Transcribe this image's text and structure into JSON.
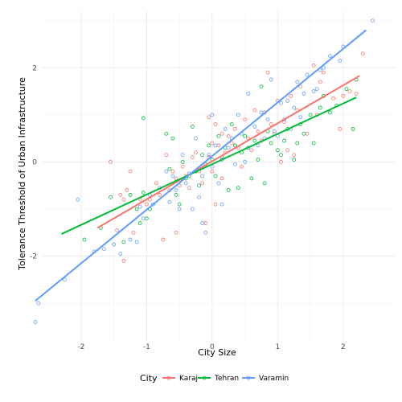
{
  "chart_data": {
    "type": "scatter",
    "title": "",
    "xlabel": "City Size",
    "ylabel": "Tolerance Threshold of Urban Infrastructure",
    "xlim": [
      -2.6,
      2.8
    ],
    "ylim": [
      -3.8,
      3.2
    ],
    "x_ticks": [
      -2,
      -1,
      0,
      1,
      2
    ],
    "x_tick_labels": [
      "-2",
      "-1",
      "0",
      "1",
      "2"
    ],
    "y_ticks": [
      -2,
      0,
      2
    ],
    "y_tick_labels": [
      "-2",
      "0",
      "2"
    ],
    "grid": true,
    "legend": {
      "title": "City",
      "position": "bottom"
    },
    "series": [
      {
        "name": "Karaj",
        "color": "#F8766D",
        "trend": [
          [
            -1.75,
            -1.4
          ],
          [
            2.25,
            1.83
          ]
        ],
        "points": [
          [
            -1.55,
            0.0
          ],
          [
            -1.45,
            -1.45
          ],
          [
            -1.3,
            -0.6
          ],
          [
            -1.25,
            -0.2
          ],
          [
            -1.35,
            -0.8
          ],
          [
            -1.4,
            -0.7
          ],
          [
            -1.35,
            -2.1
          ],
          [
            -1.2,
            -1.5
          ],
          [
            -1.1,
            -0.8
          ],
          [
            -1.0,
            -0.9
          ],
          [
            -0.95,
            -0.8
          ],
          [
            -0.85,
            -0.45
          ],
          [
            -0.8,
            -0.7
          ],
          [
            -0.75,
            -1.65
          ],
          [
            -0.7,
            0.15
          ],
          [
            -0.65,
            -0.6
          ],
          [
            -0.6,
            -0.2
          ],
          [
            -0.55,
            -0.35
          ],
          [
            -0.55,
            -1.5
          ],
          [
            -0.5,
            -0.5
          ],
          [
            -0.45,
            -0.1
          ],
          [
            -0.4,
            -0.3
          ],
          [
            -0.35,
            -0.55
          ],
          [
            -0.3,
            0.1
          ],
          [
            -0.25,
            0.2
          ],
          [
            -0.2,
            -0.2
          ],
          [
            -0.15,
            -0.45
          ],
          [
            -0.1,
            -1.3
          ],
          [
            -0.05,
            0.95
          ],
          [
            -0.05,
            0.1
          ],
          [
            0.0,
            0.4
          ],
          [
            0.0,
            -0.2
          ],
          [
            0.05,
            0.8
          ],
          [
            0.05,
            -0.9
          ],
          [
            0.1,
            0.35
          ],
          [
            0.15,
            0.6
          ],
          [
            0.15,
            -0.35
          ],
          [
            0.2,
            0.2
          ],
          [
            0.25,
            0.55
          ],
          [
            0.3,
            0.4
          ],
          [
            0.35,
            0.7
          ],
          [
            0.4,
            0.3
          ],
          [
            0.45,
            -0.1
          ],
          [
            0.5,
            0.9
          ],
          [
            0.55,
            0.5
          ],
          [
            0.6,
            0.25
          ],
          [
            0.65,
            1.1
          ],
          [
            0.7,
            0.65
          ],
          [
            0.75,
            0.45
          ],
          [
            0.8,
            1.05
          ],
          [
            0.85,
            1.9
          ],
          [
            0.9,
            0.8
          ],
          [
            0.95,
            0.6
          ],
          [
            1.0,
            1.3
          ],
          [
            1.05,
            0.0
          ],
          [
            1.1,
            0.85
          ],
          [
            1.15,
            0.25
          ],
          [
            1.2,
            1.4
          ],
          [
            1.25,
            0.15
          ],
          [
            1.3,
            1.1
          ],
          [
            1.35,
            1.6
          ],
          [
            1.45,
            0.6
          ],
          [
            1.55,
            2.05
          ],
          [
            1.6,
            1.0
          ],
          [
            1.65,
            1.7
          ],
          [
            1.7,
            1.9
          ],
          [
            1.85,
            1.35
          ],
          [
            1.95,
            0.7
          ],
          [
            2.0,
            1.4
          ],
          [
            2.1,
            1.5
          ],
          [
            2.2,
            1.45
          ],
          [
            2.3,
            2.3
          ]
        ]
      },
      {
        "name": "Tehran",
        "color": "#00BA38",
        "trend": [
          [
            -2.3,
            -1.53
          ],
          [
            2.2,
            1.37
          ]
        ],
        "points": [
          [
            -1.95,
            -1.65
          ],
          [
            -1.7,
            -1.4
          ],
          [
            -1.55,
            -0.75
          ],
          [
            -1.35,
            -1.7
          ],
          [
            -1.25,
            -0.7
          ],
          [
            -1.15,
            -1.0
          ],
          [
            -1.1,
            -1.3
          ],
          [
            -1.05,
            -0.65
          ],
          [
            -1.05,
            0.93
          ],
          [
            -1.0,
            -1.2
          ],
          [
            -0.95,
            -1.0
          ],
          [
            -0.7,
            0.6
          ],
          [
            -0.65,
            -0.15
          ],
          [
            -0.6,
            0.5
          ],
          [
            -0.55,
            -0.7
          ],
          [
            -0.5,
            -0.9
          ],
          [
            -0.45,
            0.0
          ],
          [
            -0.4,
            -0.35
          ],
          [
            -0.35,
            -0.3
          ],
          [
            -0.3,
            0.75
          ],
          [
            -0.25,
            -0.2
          ],
          [
            -0.2,
            -0.5
          ],
          [
            -0.15,
            0.15
          ],
          [
            -0.1,
            -0.05
          ],
          [
            -0.05,
            0.35
          ],
          [
            0.0,
            0.05
          ],
          [
            0.05,
            -0.3
          ],
          [
            0.1,
            0.55
          ],
          [
            0.15,
            0.1
          ],
          [
            0.2,
            0.3
          ],
          [
            0.25,
            -0.6
          ],
          [
            0.3,
            0.8
          ],
          [
            0.35,
            0.35
          ],
          [
            0.4,
            -0.55
          ],
          [
            0.45,
            0.2
          ],
          [
            0.5,
            0.55
          ],
          [
            0.55,
            0.3
          ],
          [
            0.6,
            -0.35
          ],
          [
            0.65,
            0.45
          ],
          [
            0.7,
            0.05
          ],
          [
            0.75,
            1.6
          ],
          [
            0.8,
            -0.45
          ],
          [
            0.85,
            0.65
          ],
          [
            0.9,
            0.4
          ],
          [
            1.0,
            0.25
          ],
          [
            1.05,
            0.15
          ],
          [
            1.1,
            0.45
          ],
          [
            1.15,
            0.7
          ],
          [
            1.25,
            0.05
          ],
          [
            1.3,
            0.4
          ],
          [
            1.35,
            0.8
          ],
          [
            1.4,
            0.6
          ],
          [
            1.5,
            1.0
          ],
          [
            1.55,
            0.4
          ],
          [
            1.65,
            1.15
          ],
          [
            1.7,
            1.4
          ],
          [
            1.8,
            1.05
          ],
          [
            1.9,
            1.2
          ],
          [
            2.05,
            1.55
          ],
          [
            2.15,
            0.7
          ],
          [
            2.2,
            1.75
          ]
        ]
      },
      {
        "name": "Varamin",
        "color": "#619CFF",
        "trend": [
          [
            -2.7,
            -2.95
          ],
          [
            2.35,
            2.8
          ]
        ],
        "points": [
          [
            -2.7,
            -3.4
          ],
          [
            -2.65,
            -3.0
          ],
          [
            -2.25,
            -2.5
          ],
          [
            -2.05,
            -0.8
          ],
          [
            -1.8,
            -1.9
          ],
          [
            -1.65,
            -1.85
          ],
          [
            -1.5,
            -1.75
          ],
          [
            -1.4,
            -1.95
          ],
          [
            -1.25,
            -1.65
          ],
          [
            -1.15,
            -1.7
          ],
          [
            -1.1,
            -0.95
          ],
          [
            -1.05,
            -1.2
          ],
          [
            -0.95,
            -0.7
          ],
          [
            -0.9,
            -0.9
          ],
          [
            -0.8,
            -0.55
          ],
          [
            -0.7,
            -0.2
          ],
          [
            -0.65,
            -0.85
          ],
          [
            -0.6,
            -0.3
          ],
          [
            -0.55,
            -0.6
          ],
          [
            -0.5,
            -1.0
          ],
          [
            -0.45,
            0.15
          ],
          [
            -0.4,
            -0.45
          ],
          [
            -0.35,
            -0.25
          ],
          [
            -0.3,
            -1.0
          ],
          [
            -0.25,
            0.5
          ],
          [
            -0.2,
            -0.75
          ],
          [
            -0.15,
            -0.3
          ],
          [
            -0.1,
            -1.5
          ],
          [
            -0.05,
            0.15
          ],
          [
            0.0,
            -0.1
          ],
          [
            0.0,
            1.0
          ],
          [
            0.05,
            0.35
          ],
          [
            0.1,
            -0.45
          ],
          [
            0.15,
            0.05
          ],
          [
            0.2,
            0.7
          ],
          [
            0.25,
            0.3
          ],
          [
            0.3,
            0.5
          ],
          [
            0.35,
            -0.05
          ],
          [
            0.4,
            1.0
          ],
          [
            0.45,
            0.6
          ],
          [
            0.5,
            0.0
          ],
          [
            0.55,
            0.3
          ],
          [
            0.55,
            1.45
          ],
          [
            0.65,
            0.75
          ],
          [
            0.7,
            0.35
          ],
          [
            0.75,
            1.05
          ],
          [
            0.8,
            0.5
          ],
          [
            0.85,
            0.9
          ],
          [
            0.9,
            1.75
          ],
          [
            0.95,
            0.65
          ],
          [
            1.0,
            0.55
          ],
          [
            1.05,
            1.25
          ],
          [
            1.1,
            0.9
          ],
          [
            1.15,
            1.3
          ],
          [
            1.2,
            0.7
          ],
          [
            1.25,
            1.15
          ],
          [
            1.3,
            1.7
          ],
          [
            1.35,
            0.95
          ],
          [
            1.4,
            1.45
          ],
          [
            1.45,
            1.85
          ],
          [
            1.55,
            1.5
          ],
          [
            1.6,
            1.55
          ],
          [
            1.65,
            1.95
          ],
          [
            1.7,
            2.0
          ],
          [
            1.8,
            2.25
          ],
          [
            1.95,
            2.15
          ],
          [
            2.0,
            2.45
          ],
          [
            2.45,
            3.0
          ],
          [
            -0.15,
            -1.3
          ],
          [
            0.15,
            -0.9
          ]
        ]
      }
    ]
  }
}
